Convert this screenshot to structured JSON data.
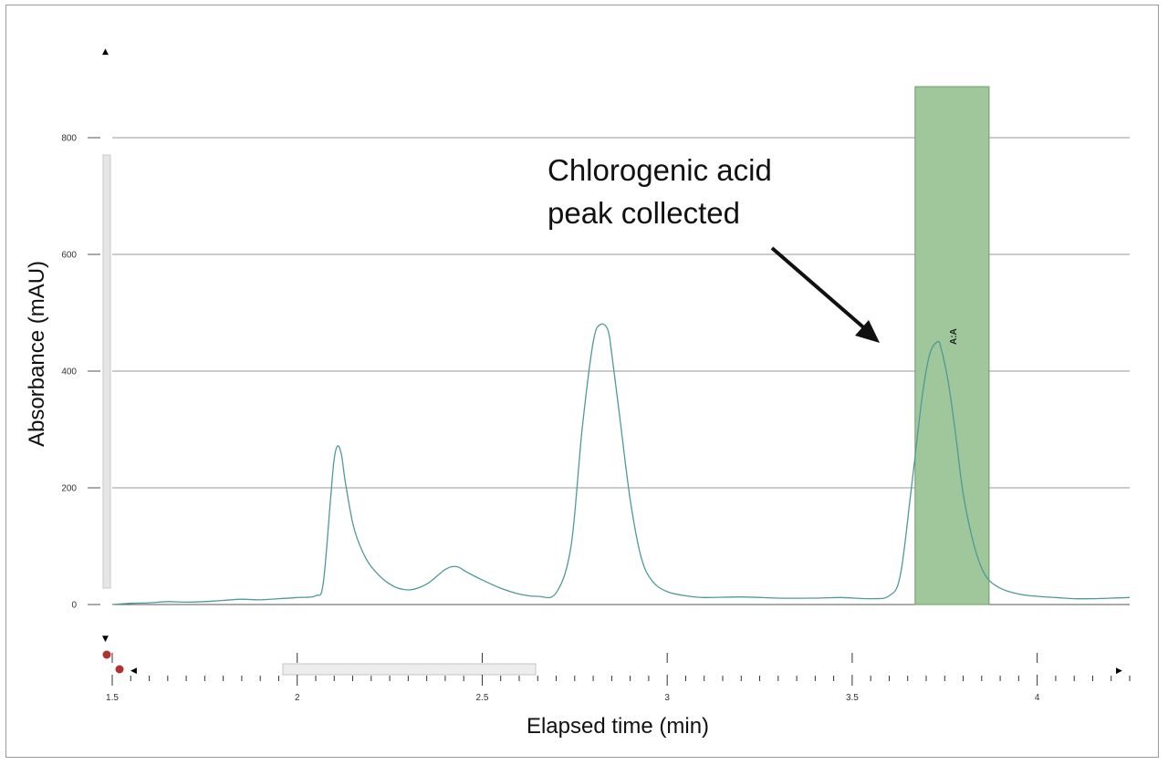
{
  "chart_data": {
    "type": "line",
    "title": "",
    "xlabel": "Elapsed time (min)",
    "ylabel": "Absorbance (mAU)",
    "xlim": [
      1.5,
      4.25
    ],
    "ylim": [
      -130,
      960
    ],
    "x_ticks": [
      1.5,
      2,
      2.5,
      3,
      3.5,
      4
    ],
    "x_tick_labels": [
      "1.5",
      "2",
      "2.5",
      "3",
      "3.5",
      "4"
    ],
    "y_ticks": [
      0,
      200,
      400,
      600,
      800
    ],
    "y_tick_labels": [
      "0",
      "200",
      "400",
      "600",
      "800"
    ],
    "grid": "horizontal",
    "line_color": "#4f9a98",
    "series": [
      {
        "x": [
          1.5,
          1.55,
          1.6,
          1.65,
          1.7,
          1.75,
          1.8,
          1.85,
          1.9,
          1.95,
          2.0,
          2.05,
          2.07,
          2.09,
          2.1,
          2.11,
          2.12,
          2.13,
          2.15,
          2.17,
          2.2,
          2.25,
          2.3,
          2.35,
          2.4,
          2.43,
          2.46,
          2.5,
          2.55,
          2.6,
          2.65,
          2.7,
          2.74,
          2.77,
          2.8,
          2.82,
          2.84,
          2.85,
          2.87,
          2.9,
          2.93,
          2.96,
          3.0,
          3.05,
          3.1,
          3.2,
          3.3,
          3.4,
          3.47,
          3.55,
          3.6,
          3.63,
          3.66,
          3.69,
          3.71,
          3.73,
          3.74,
          3.76,
          3.78,
          3.8,
          3.83,
          3.86,
          3.9,
          3.95,
          4.0,
          4.05,
          4.1,
          4.15,
          4.2,
          4.25
        ],
        "y": [
          0,
          2,
          3,
          5,
          4,
          5,
          7,
          9,
          8,
          10,
          12,
          15,
          35,
          180,
          250,
          272,
          255,
          210,
          140,
          100,
          65,
          35,
          25,
          35,
          60,
          65,
          55,
          42,
          28,
          18,
          14,
          20,
          100,
          300,
          450,
          480,
          470,
          430,
          330,
          180,
          80,
          40,
          22,
          15,
          12,
          13,
          11,
          11,
          12,
          10,
          15,
          50,
          200,
          360,
          430,
          450,
          440,
          380,
          290,
          190,
          100,
          50,
          28,
          18,
          14,
          12,
          10,
          10,
          11,
          12
        ]
      }
    ],
    "fraction": {
      "label": "A:A",
      "x_start": 3.67,
      "x_end": 3.87,
      "color": "#9fc79b"
    },
    "annotation": {
      "lines": [
        "Chlorogenic acid",
        "peak collected"
      ]
    }
  }
}
